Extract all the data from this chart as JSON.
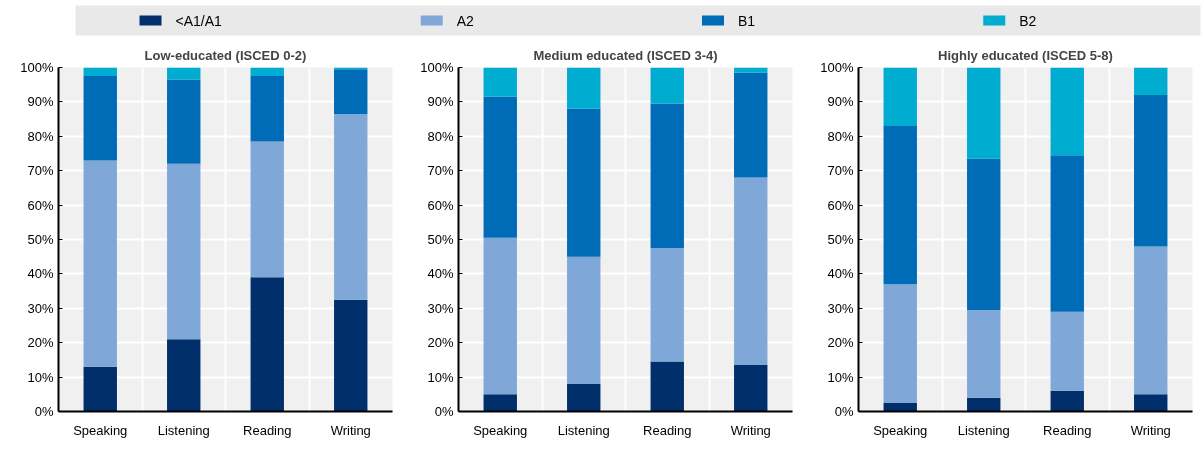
{
  "chart_data": [
    {
      "type": "bar",
      "title": "Low-educated (ISCED 0-2)",
      "stacked": true,
      "legend": "top",
      "grid": true,
      "categories": [
        "Speaking",
        "Listening",
        "Reading",
        "Writing"
      ],
      "ylim": [
        0,
        100
      ],
      "yticks": [
        {
          "value": 0,
          "label": "0%"
        },
        {
          "value": 10,
          "label": "10%"
        },
        {
          "value": 20,
          "label": "20%"
        },
        {
          "value": 30,
          "label": "30%"
        },
        {
          "value": 40,
          "label": "40%"
        },
        {
          "value": 50,
          "label": "50%"
        },
        {
          "value": 60,
          "label": "60%"
        },
        {
          "value": 70,
          "label": "70%"
        },
        {
          "value": 80,
          "label": "80%"
        },
        {
          "value": 90,
          "label": "90%"
        },
        {
          "value": 100,
          "label": "100%"
        }
      ],
      "series": [
        {
          "name": "<A1/A1",
          "color": "#002f6c",
          "values": [
            13,
            21,
            39,
            32.5
          ]
        },
        {
          "name": "A2",
          "color": "#7fa8d9",
          "values": [
            60,
            51,
            39.5,
            54
          ]
        },
        {
          "name": "B1",
          "color": "#006bb6",
          "values": [
            24.5,
            24.5,
            19,
            13
          ]
        },
        {
          "name": "B2",
          "color": "#00acd0",
          "values": [
            2.5,
            3.5,
            2.5,
            0.5
          ]
        }
      ]
    },
    {
      "type": "bar",
      "title": "Medium educated (ISCED 3-4)",
      "stacked": true,
      "grid": true,
      "categories": [
        "Speaking",
        "Listening",
        "Reading",
        "Writing"
      ],
      "ylim": [
        0,
        100
      ],
      "yticks": [
        {
          "value": 0,
          "label": "0%"
        },
        {
          "value": 10,
          "label": "10%"
        },
        {
          "value": 20,
          "label": "20%"
        },
        {
          "value": 30,
          "label": "30%"
        },
        {
          "value": 40,
          "label": "40%"
        },
        {
          "value": 50,
          "label": "50%"
        },
        {
          "value": 60,
          "label": "60%"
        },
        {
          "value": 70,
          "label": "70%"
        },
        {
          "value": 80,
          "label": "80%"
        },
        {
          "value": 90,
          "label": "90%"
        },
        {
          "value": 100,
          "label": "100%"
        }
      ],
      "series": [
        {
          "color": "#002f6c",
          "values": [
            5,
            8,
            14.5,
            13.5
          ]
        },
        {
          "color": "#7fa8d9",
          "values": [
            45.5,
            37,
            33,
            54.5
          ]
        },
        {
          "color": "#006bb6",
          "values": [
            41,
            43,
            42,
            30.5
          ]
        },
        {
          "color": "#00acd0",
          "values": [
            8.5,
            12,
            10.5,
            1.5
          ]
        }
      ]
    },
    {
      "type": "bar",
      "title": "Highly educated (ISCED 5-8)",
      "stacked": true,
      "grid": true,
      "categories": [
        "Speaking",
        "Listening",
        "Reading",
        "Writing"
      ],
      "ylim": [
        0,
        100
      ],
      "yticks": [
        {
          "value": 0,
          "label": "0%"
        },
        {
          "value": 10,
          "label": "10%"
        },
        {
          "value": 20,
          "label": "20%"
        },
        {
          "value": 30,
          "label": "30%"
        },
        {
          "value": 40,
          "label": "40%"
        },
        {
          "value": 50,
          "label": "50%"
        },
        {
          "value": 60,
          "label": "60%"
        },
        {
          "value": 70,
          "label": "70%"
        },
        {
          "value": 80,
          "label": "80%"
        },
        {
          "value": 90,
          "label": "90%"
        },
        {
          "value": 100,
          "label": "100%"
        }
      ],
      "series": [
        {
          "color": "#002f6c",
          "values": [
            2.5,
            4,
            6,
            5
          ]
        },
        {
          "color": "#7fa8d9",
          "values": [
            34.5,
            25.5,
            23,
            43
          ]
        },
        {
          "color": "#006bb6",
          "values": [
            46,
            44,
            45.5,
            44
          ]
        },
        {
          "color": "#00acd0",
          "values": [
            17,
            26.5,
            25.5,
            8
          ]
        }
      ]
    }
  ]
}
